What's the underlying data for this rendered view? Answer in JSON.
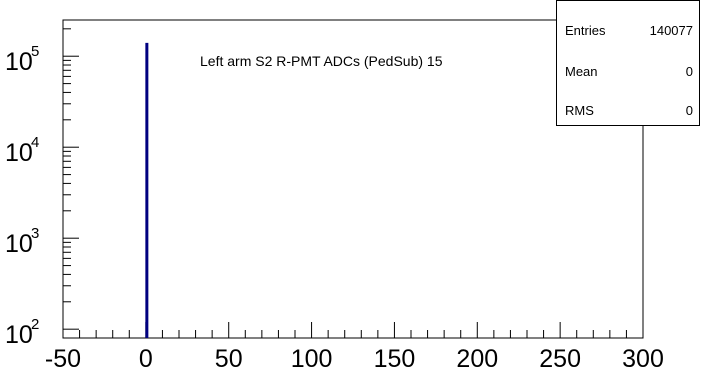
{
  "chart_data": {
    "type": "bar",
    "title": "Left arm S2 R-PMT ADCs (PedSub) 15",
    "xlabel": "",
    "ylabel": "",
    "xlim": [
      -50,
      300
    ],
    "ylim": [
      80,
      250000
    ],
    "y_scale": "log",
    "grid": false,
    "x_ticks": [
      -50,
      0,
      50,
      100,
      150,
      200,
      250,
      300
    ],
    "y_ticks": [
      {
        "base": "10",
        "exp": "2",
        "value": 100
      },
      {
        "base": "10",
        "exp": "3",
        "value": 1000
      },
      {
        "base": "10",
        "exp": "4",
        "value": 10000
      },
      {
        "base": "10",
        "exp": "5",
        "value": 100000
      }
    ],
    "series": [
      {
        "x": [
          0
        ],
        "values": [
          140077
        ],
        "color": "#000080"
      }
    ]
  },
  "stats": [
    {
      "name": "Entries",
      "value": "140077"
    },
    {
      "name": "Mean",
      "value": "0"
    },
    {
      "name": "RMS",
      "value": "0"
    }
  ]
}
